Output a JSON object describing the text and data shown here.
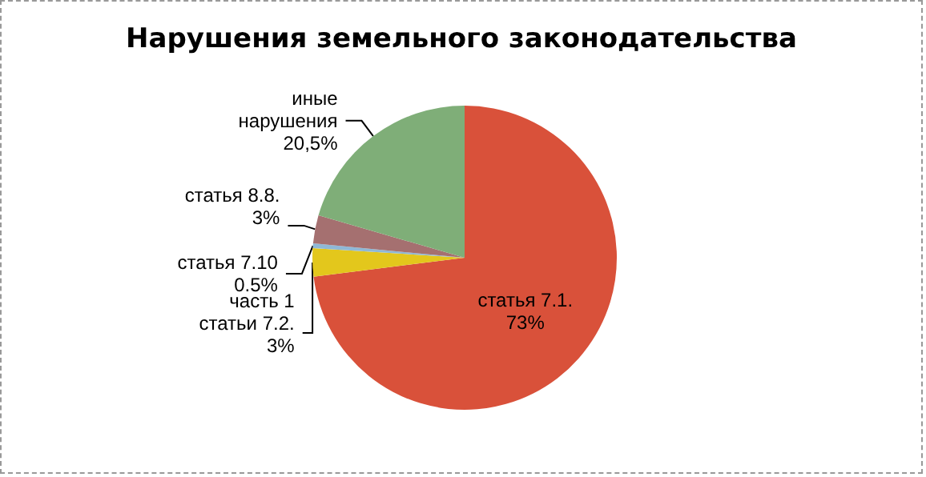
{
  "chart_data": {
    "type": "pie",
    "title": "Нарушения земельного законодательства",
    "categories": [
      "статья 7.1.",
      "часть 1 статьи 7.2.",
      "статья 7.10",
      "статья 8.8.",
      "иные нарушения"
    ],
    "values": [
      73,
      3,
      0.5,
      3,
      20.5
    ],
    "value_labels": [
      "73%",
      "3%",
      "0.5%",
      "3%",
      "20,5%"
    ],
    "colors": [
      "#d9513a",
      "#e3c71c",
      "#8fb8d6",
      "#a57070",
      "#7fae78"
    ]
  }
}
